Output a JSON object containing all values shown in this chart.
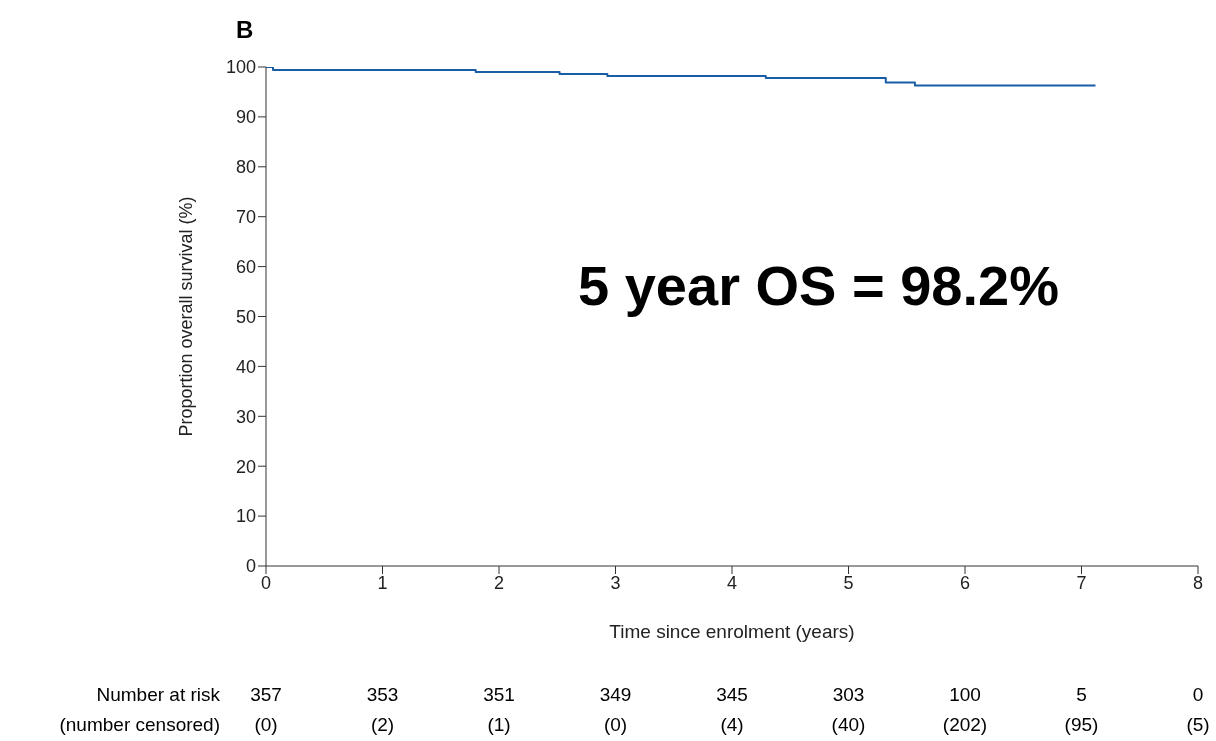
{
  "chart_data": {
    "type": "step",
    "title": "B",
    "xlabel": "Time since enrolment (years)",
    "ylabel": "Proportion overall survival (%)",
    "x": [
      0,
      0.06,
      1.8,
      2.52,
      2.93,
      4.29,
      5.32,
      5.57,
      7.12
    ],
    "series": [
      {
        "color": "#1a5da6",
        "values": [
          100,
          99.4,
          99.0,
          98.6,
          98.2,
          97.8,
          96.9,
          96.3,
          96.3
        ]
      }
    ],
    "xlim": [
      0,
      8
    ],
    "xticks": [
      0,
      1,
      2,
      3,
      4,
      5,
      6,
      7,
      8
    ],
    "ylim": [
      0,
      100
    ],
    "yticks": [
      0,
      10,
      20,
      30,
      40,
      50,
      60,
      70,
      80,
      90,
      100
    ],
    "grid": false,
    "legend": false,
    "marker": "none",
    "annotations": [
      "5 year OS = 98.2%",
      "Number at risk\n(number censored)",
      "357\n(0)",
      "353\n(2)",
      "351\n(1)",
      "349\n(0)",
      "345\n(4)",
      "303\n(40)",
      "100\n(202)",
      "5\n(95)",
      "0\n(5)"
    ]
  }
}
